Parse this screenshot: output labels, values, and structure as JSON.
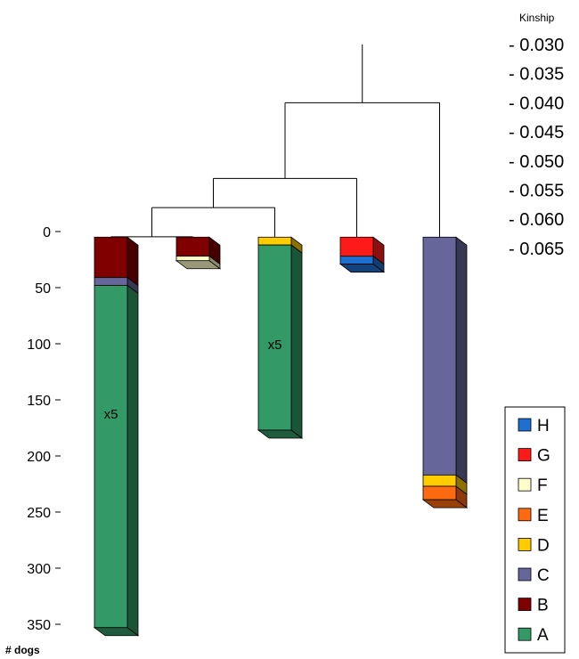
{
  "chart_data": {
    "type": "bar",
    "subtype": "stacked-3d-with-dendrogram",
    "y_axis": {
      "label": "# dogs",
      "ticks": [
        0,
        50,
        100,
        150,
        200,
        250,
        300,
        350
      ],
      "ylim": [
        0,
        350
      ],
      "inverted": true
    },
    "kinship_axis": {
      "label": "Kinship",
      "ticks": [
        "- 0.030",
        "- 0.035",
        "- 0.040",
        "- 0.045",
        "- 0.050",
        "- 0.055",
        "- 0.060",
        "- 0.065"
      ]
    },
    "legend": {
      "placement": "bottom-right",
      "entries": [
        {
          "name": "H",
          "color": "#1f6fd0"
        },
        {
          "name": "G",
          "color": "#ff1a1a"
        },
        {
          "name": "F",
          "color": "#ffffcc"
        },
        {
          "name": "E",
          "color": "#ff6a10"
        },
        {
          "name": "D",
          "color": "#ffcc00"
        },
        {
          "name": "C",
          "color": "#66669a"
        },
        {
          "name": "B",
          "color": "#800000"
        },
        {
          "name": "A",
          "color": "#339966"
        }
      ]
    },
    "bars": [
      {
        "segments": [
          {
            "category": "B",
            "value": 36
          },
          {
            "category": "C",
            "value": 7
          },
          {
            "category": "A",
            "value": 305
          }
        ],
        "note": "x5"
      },
      {
        "segments": [
          {
            "category": "B",
            "value": 17
          },
          {
            "category": "F",
            "value": 4
          }
        ]
      },
      {
        "segments": [
          {
            "category": "D",
            "value": 7
          },
          {
            "category": "A",
            "value": 165
          }
        ],
        "note": "x5"
      },
      {
        "segments": [
          {
            "category": "G",
            "value": 17
          },
          {
            "category": "H",
            "value": 7
          }
        ]
      },
      {
        "segments": [
          {
            "category": "C",
            "value": 212
          },
          {
            "category": "D",
            "value": 10
          },
          {
            "category": "E",
            "value": 12
          }
        ]
      }
    ],
    "dendrogram": {
      "merges": [
        {
          "left": "bar0",
          "right": "bar1",
          "kinship": 0.063
        },
        {
          "left": "m0",
          "right": "bar2",
          "kinship": 0.058
        },
        {
          "left": "m1",
          "right": "bar3",
          "kinship": 0.053
        },
        {
          "left": "m2",
          "right": "bar4",
          "kinship": 0.04
        }
      ],
      "root_kinship": 0.03
    }
  }
}
